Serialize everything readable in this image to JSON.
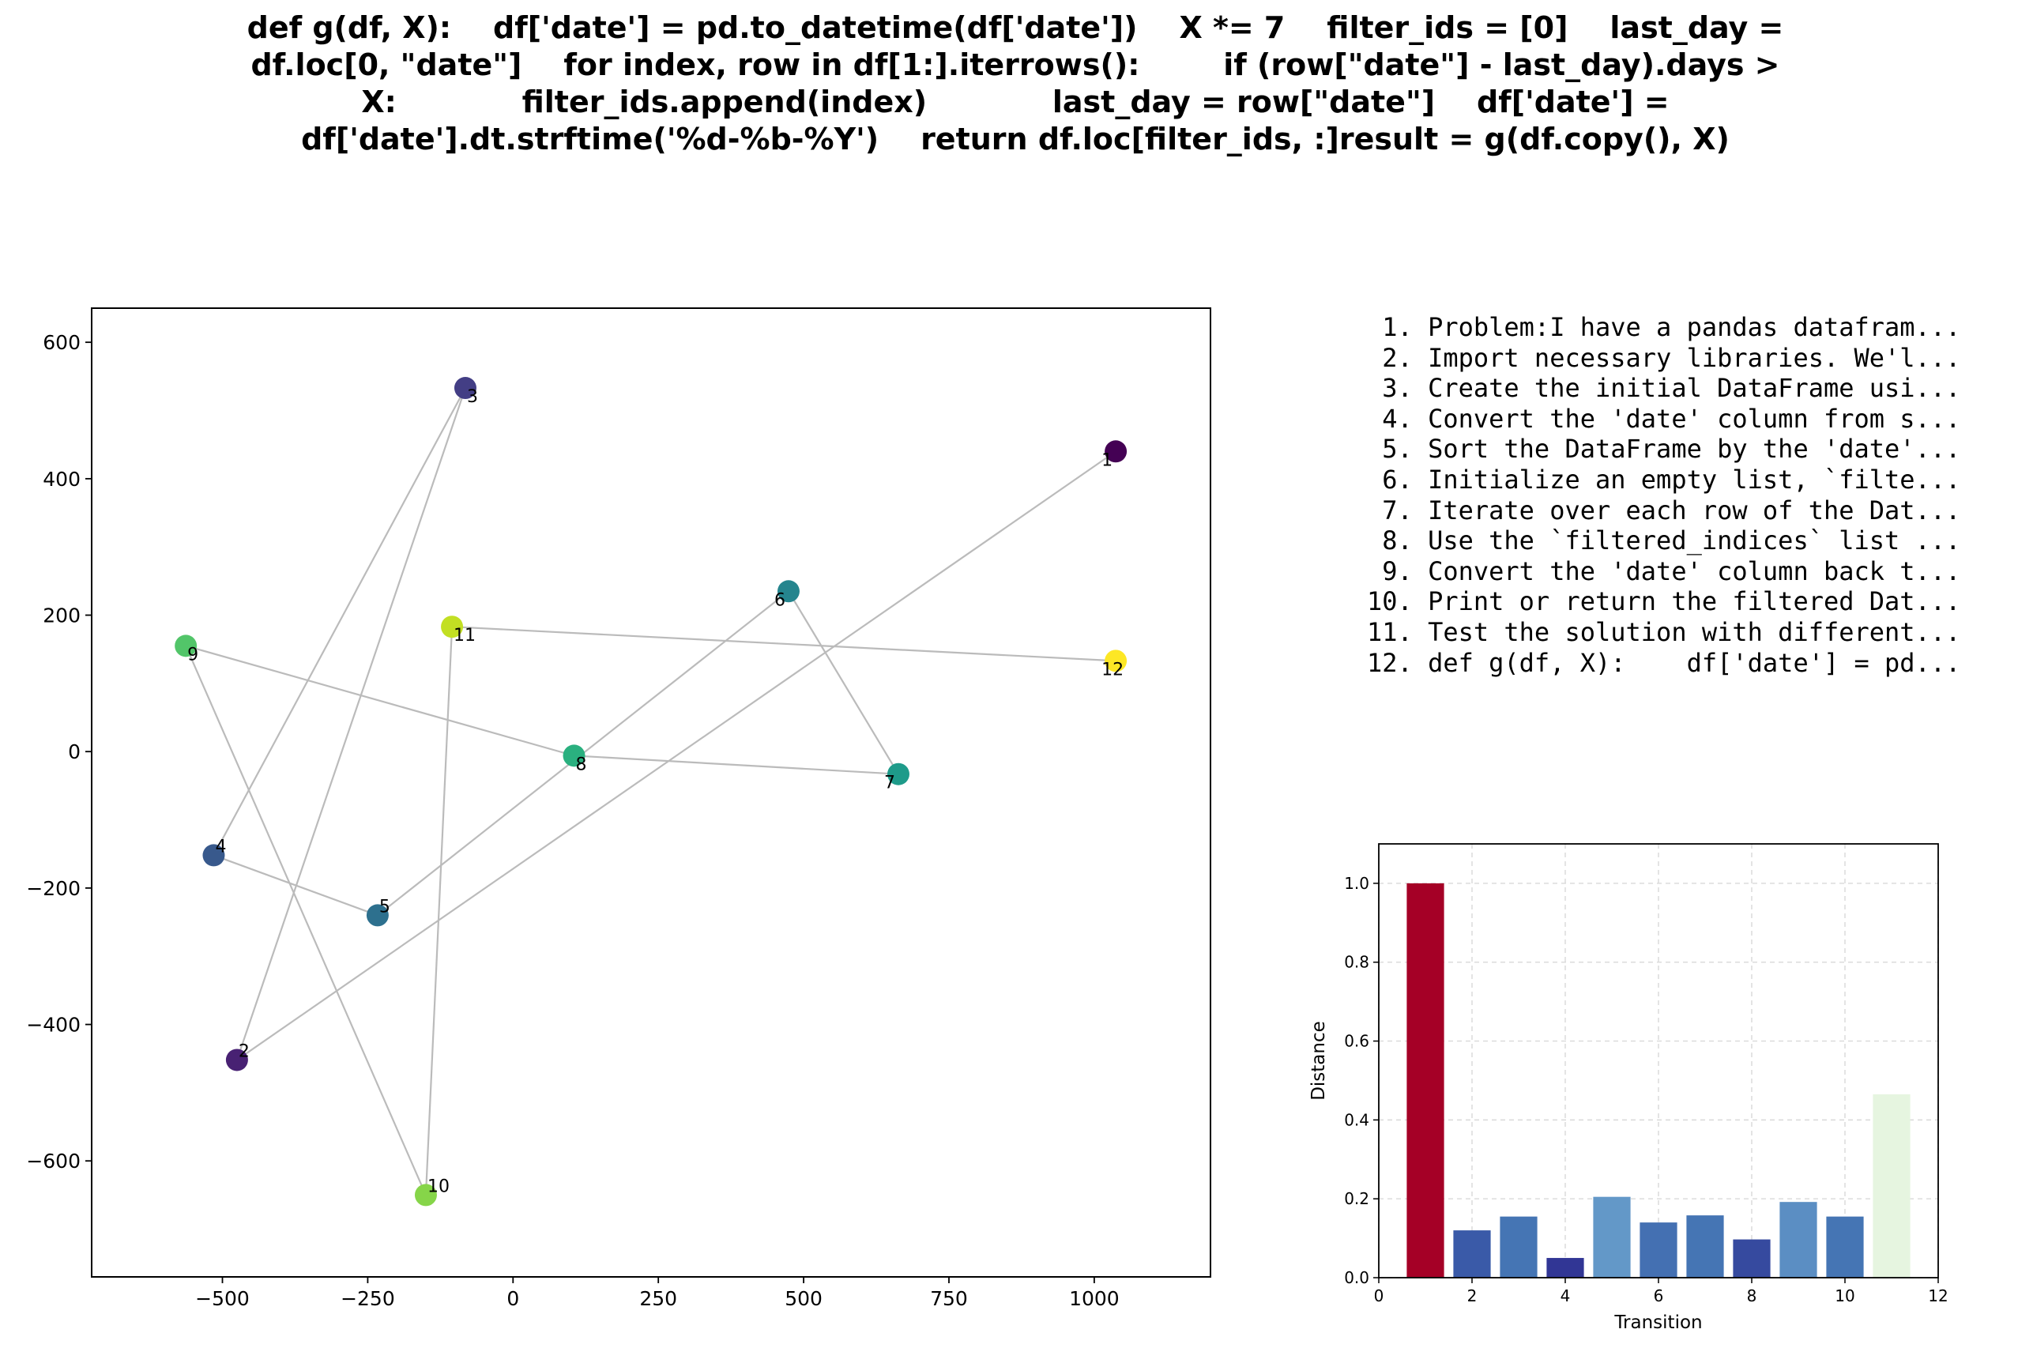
{
  "title_lines": [
    "def g(df, X):    df['date'] = pd.to_datetime(df['date'])    X *= 7    filter_ids = [0]    last_day =",
    "df.loc[0, \"date\"]    for index, row in df[1:].iterrows():        if (row[\"date\"] - last_day).days >",
    "X:            filter_ids.append(index)            last_day = row[\"date\"]    df['date'] =",
    "df['date'].dt.strftime('%d-%b-%Y')    return df.loc[filter_ids, :]result = g(df.copy(), X)"
  ],
  "steps": [
    " 1. Problem:I have a pandas datafram...",
    " 2. Import necessary libraries. We'l...",
    " 3. Create the initial DataFrame usi...",
    " 4. Convert the 'date' column from s...",
    " 5. Sort the DataFrame by the 'date'...",
    " 6. Initialize an empty list, `filte...",
    " 7. Iterate over each row of the Dat...",
    " 8. Use the `filtered_indices` list ...",
    " 9. Convert the 'date' column back t...",
    "10. Print or return the filtered Dat...",
    "11. Test the solution with different...",
    "12. def g(df, X):    df['date'] = pd..."
  ],
  "chart_data": [
    {
      "type": "scatter",
      "xlim": [
        -725,
        1200
      ],
      "ylim": [
        -770,
        650
      ],
      "x_ticks": [
        -500,
        -250,
        0,
        250,
        500,
        750,
        1000
      ],
      "x_tick_labels": [
        "−500",
        "−250",
        "0",
        "250",
        "500",
        "750",
        "1000"
      ],
      "y_ticks": [
        -600,
        -400,
        -200,
        0,
        200,
        400,
        600
      ],
      "y_tick_labels": [
        "−600",
        "−400",
        "−200",
        "0",
        "200",
        "400",
        "600"
      ],
      "grid": false,
      "connect_in_order": true,
      "line_color": "#bbbbbb",
      "points": [
        {
          "label": "1",
          "x": 1037,
          "y": 440,
          "color": "#440154"
        },
        {
          "label": "2",
          "x": -475,
          "y": -452,
          "color": "#482173"
        },
        {
          "label": "3",
          "x": -82,
          "y": 533,
          "color": "#433e85"
        },
        {
          "label": "4",
          "x": -515,
          "y": -152,
          "color": "#38598c"
        },
        {
          "label": "5",
          "x": -233,
          "y": -240,
          "color": "#2d708e"
        },
        {
          "label": "6",
          "x": 474,
          "y": 235,
          "color": "#25858e"
        },
        {
          "label": "7",
          "x": 663,
          "y": -33,
          "color": "#1e9b8a"
        },
        {
          "label": "8",
          "x": 105,
          "y": -6,
          "color": "#2ab07f"
        },
        {
          "label": "9",
          "x": -563,
          "y": 155,
          "color": "#52c569"
        },
        {
          "label": "10",
          "x": -150,
          "y": -650,
          "color": "#86d549"
        },
        {
          "label": "11",
          "x": -105,
          "y": 183,
          "color": "#c2df23"
        },
        {
          "label": "12",
          "x": 1037,
          "y": 133,
          "color": "#fde725"
        }
      ]
    },
    {
      "type": "bar",
      "xlabel": "Transition",
      "ylabel": "Distance",
      "xlim": [
        0,
        12
      ],
      "ylim": [
        0,
        1.1
      ],
      "x_ticks": [
        0,
        2,
        4,
        6,
        8,
        10,
        12
      ],
      "x_tick_labels": [
        "0",
        "2",
        "4",
        "6",
        "8",
        "10",
        "12"
      ],
      "y_ticks": [
        0,
        0.2,
        0.4,
        0.6,
        0.8,
        1.0
      ],
      "y_tick_labels": [
        "0.0",
        "0.2",
        "0.4",
        "0.6",
        "0.8",
        "1.0"
      ],
      "grid": true,
      "categories": [
        1,
        2,
        3,
        4,
        5,
        6,
        7,
        8,
        9,
        10,
        11
      ],
      "values": [
        1.0,
        0.12,
        0.155,
        0.05,
        0.205,
        0.14,
        0.158,
        0.097,
        0.192,
        0.155,
        0.465
      ],
      "colors": [
        "#a50026",
        "#3a5aa8",
        "#4575b4",
        "#313695",
        "#6398c8",
        "#4470b2",
        "#4575b4",
        "#364a9f",
        "#5b8ec3",
        "#4575b4",
        "#e6f5e0"
      ]
    }
  ]
}
